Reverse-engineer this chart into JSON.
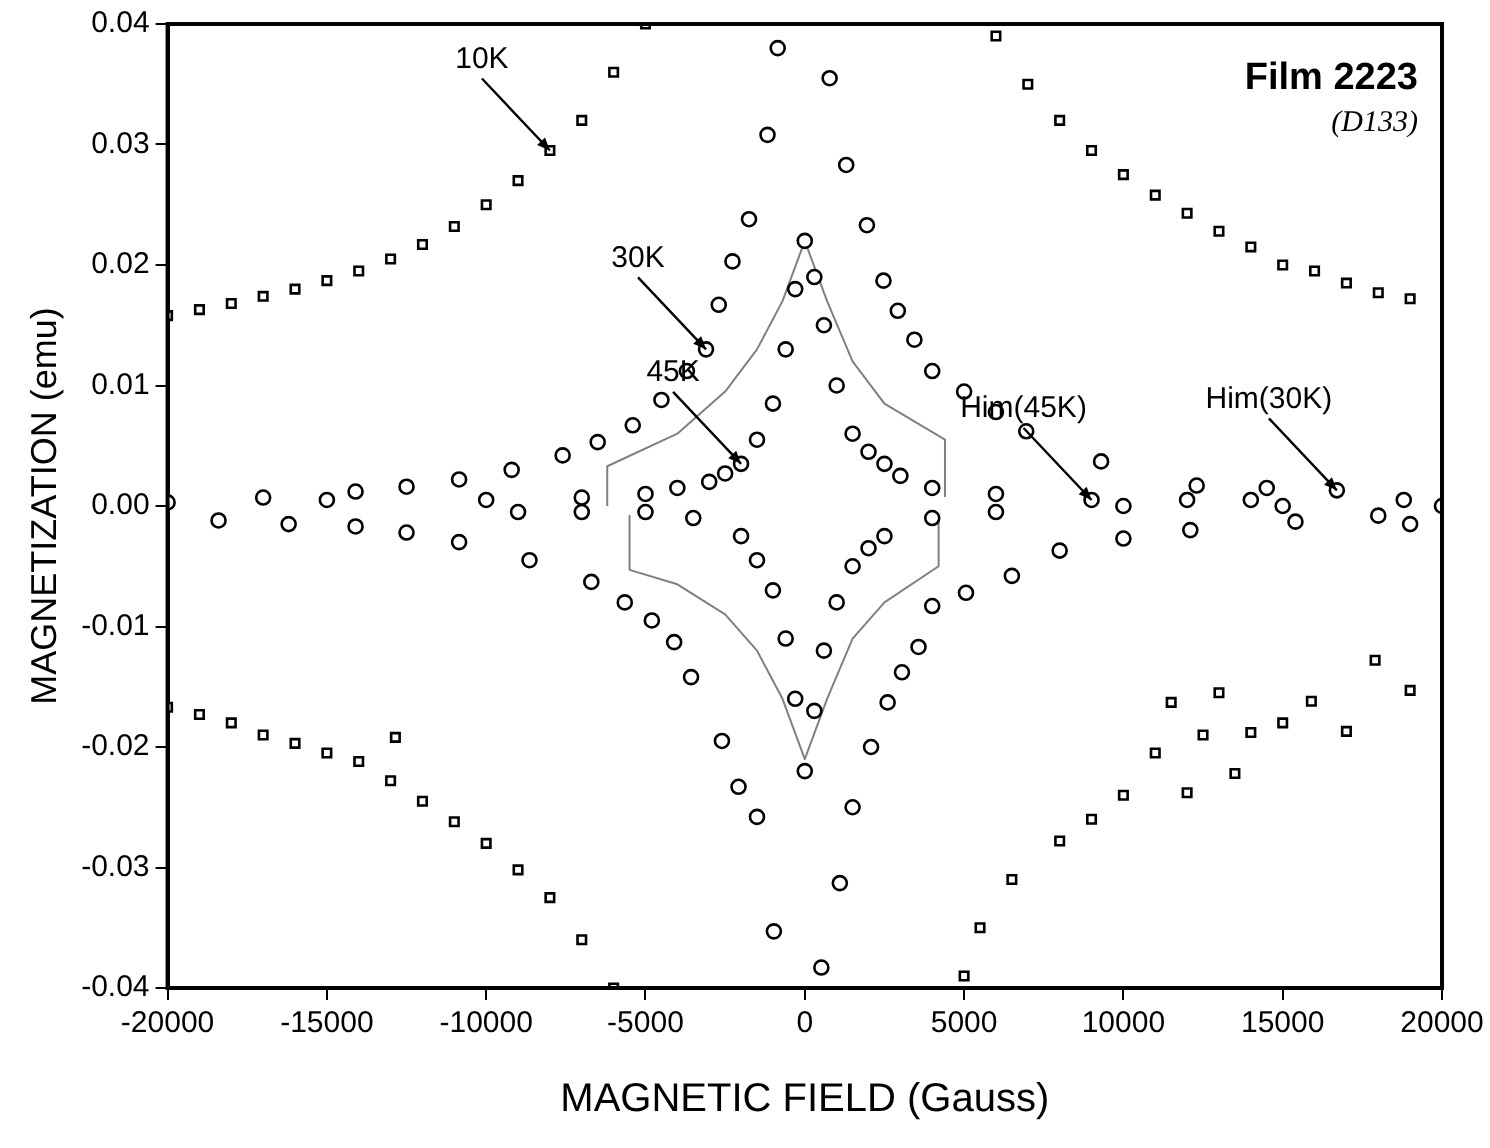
{
  "chart_data": {
    "type": "scatter",
    "xlabel": "MAGNETIC FIELD (Gauss)",
    "ylabel": "MAGNETIZATION (emu)",
    "xlim": [
      -20000,
      20000
    ],
    "xticks": [
      -20000,
      -15000,
      -10000,
      -5000,
      0,
      5000,
      10000,
      15000,
      20000
    ],
    "ylim": [
      -0.04,
      0.04
    ],
    "yticks": [
      {
        "value": -0.04,
        "label": "-0.04"
      },
      {
        "value": -0.03,
        "label": "-0.03"
      },
      {
        "value": -0.02,
        "label": "-0.02"
      },
      {
        "value": -0.01,
        "label": "-0.01"
      },
      {
        "value": 0,
        "label": "0.00"
      },
      {
        "value": 0.01,
        "label": "0.01"
      },
      {
        "value": 0.02,
        "label": "0.02"
      },
      {
        "value": 0.03,
        "label": "0.03"
      },
      {
        "value": 0.04,
        "label": "0.04"
      }
    ],
    "grid": false,
    "legend": false,
    "annotations": [
      "Film 2223",
      "(D133)",
      {
        "text": "10K",
        "x": -8000,
        "y": 0.0295
      },
      {
        "text": "30K",
        "x": -3100,
        "y": 0.013
      },
      {
        "text": "45K",
        "x": -2000,
        "y": 0.0035
      },
      {
        "text": "Him(45K)",
        "x": 9000,
        "y": 0.0005
      },
      {
        "text": "Him(30K)",
        "x": 16700,
        "y": 0.0013
      }
    ],
    "series": [
      {
        "marker": "square",
        "color": "#000000",
        "x": [
          -20000,
          -19000,
          -18000,
          -17000,
          -16000,
          -15000,
          -14000,
          -13000,
          -12000,
          -11000,
          -10000,
          -9000,
          -8000,
          -7000,
          -6000,
          -5000,
          6000,
          7000,
          8000,
          9000,
          10000,
          11000,
          12000,
          13000,
          14000,
          15000,
          16000,
          17000,
          18000,
          19000,
          -20000,
          -19000,
          -18000,
          -17000,
          -16000,
          -15000,
          -14000,
          -13000,
          -12000,
          -11000,
          -10000,
          -9000,
          -8000,
          -7000,
          -6000,
          -12850,
          5000,
          5500,
          6500,
          8000,
          9000,
          10000,
          11000,
          12500,
          14000,
          15000,
          11500,
          12000,
          13000,
          13500,
          15900,
          17000,
          17900,
          19000
        ],
        "values": [
          0.0158,
          0.0163,
          0.0168,
          0.0174,
          0.018,
          0.0187,
          0.0195,
          0.0205,
          0.0217,
          0.0232,
          0.025,
          0.027,
          0.0295,
          0.032,
          0.036,
          0.04,
          0.039,
          0.035,
          0.032,
          0.0295,
          0.0275,
          0.0258,
          0.0243,
          0.0228,
          0.0215,
          0.02,
          0.0195,
          0.0185,
          0.0177,
          0.0172,
          -0.0167,
          -0.0173,
          -0.018,
          -0.019,
          -0.0197,
          -0.0205,
          -0.0212,
          -0.0228,
          -0.0245,
          -0.0262,
          -0.028,
          -0.0302,
          -0.0325,
          -0.036,
          -0.04,
          -0.0192,
          -0.039,
          -0.035,
          -0.031,
          -0.0278,
          -0.026,
          -0.024,
          -0.0205,
          -0.019,
          -0.0188,
          -0.018,
          -0.0163,
          -0.0238,
          -0.0155,
          -0.0222,
          -0.0162,
          -0.0187,
          -0.0128,
          -0.0153
        ]
      },
      {
        "marker": "circle",
        "color": "#000000",
        "x": [
          -20000,
          -17000,
          -14100,
          -12500,
          -10850,
          -9200,
          -7600,
          -6500,
          -5400,
          -4500,
          -3700,
          -3100,
          -2700,
          -2270,
          -1750,
          -1170,
          -850,
          780,
          1300,
          1950,
          2470,
          2920,
          3440,
          4000,
          5000,
          6000,
          6950,
          9300,
          12300,
          14500,
          16700,
          18800,
          -18400,
          -16200,
          -14100,
          -12500,
          -10850,
          -8640,
          -6700,
          -5650,
          -4800,
          -4100,
          -3570,
          -2600,
          -2080,
          -1500,
          -970,
          520,
          1100,
          1500,
          2080,
          2600,
          3050,
          3570,
          4000,
          5060,
          6500,
          8000,
          10000,
          12100,
          15400,
          18000
        ],
        "values": [
          0.0003,
          0.0007,
          0.0012,
          0.0016,
          0.0022,
          0.003,
          0.0042,
          0.0053,
          0.0067,
          0.0088,
          0.0112,
          0.013,
          0.0167,
          0.0203,
          0.0238,
          0.0308,
          0.038,
          0.0355,
          0.0283,
          0.0233,
          0.0187,
          0.0162,
          0.0138,
          0.0112,
          0.0095,
          0.0078,
          0.0062,
          0.0037,
          0.0017,
          0.0015,
          0.0013,
          0.0005,
          -0.0012,
          -0.0015,
          -0.0017,
          -0.0022,
          -0.003,
          -0.0045,
          -0.0063,
          -0.008,
          -0.0095,
          -0.0113,
          -0.0142,
          -0.0195,
          -0.0233,
          -0.0258,
          -0.0353,
          -0.0383,
          -0.0313,
          -0.025,
          -0.02,
          -0.0163,
          -0.0138,
          -0.0117,
          -0.0083,
          -0.0072,
          -0.0058,
          -0.0037,
          -0.0027,
          -0.002,
          -0.0013,
          -0.0008
        ]
      },
      {
        "marker": "circle",
        "color": "#000000",
        "x": [
          -15000,
          -10000,
          -7000,
          -5000,
          -4000,
          -3000,
          -2500,
          -2000,
          -1500,
          -1000,
          -600,
          -300,
          0,
          300,
          600,
          1000,
          1500,
          2000,
          2500,
          3000,
          4000,
          6000,
          9000,
          12000,
          14000,
          -9000,
          -7000,
          -5000,
          -3500,
          -2000,
          -1500,
          -1000,
          -600,
          -300,
          0,
          300,
          600,
          1000,
          1500,
          2000,
          2500,
          4000,
          6000,
          10000,
          15000,
          19000,
          20000
        ],
        "values": [
          0.0005,
          0.0005,
          0.0007,
          0.001,
          0.0015,
          0.002,
          0.0027,
          0.0035,
          0.0055,
          0.0085,
          0.013,
          0.018,
          0.022,
          0.019,
          0.015,
          0.01,
          0.006,
          0.0045,
          0.0035,
          0.0025,
          0.0015,
          0.001,
          0.0005,
          0.0005,
          0.0005,
          -0.0005,
          -0.0005,
          -0.0005,
          -0.001,
          -0.0025,
          -0.0045,
          -0.007,
          -0.011,
          -0.016,
          -0.022,
          -0.017,
          -0.012,
          -0.008,
          -0.005,
          -0.0035,
          -0.0025,
          -0.001,
          -0.0005,
          0,
          0,
          -0.0015,
          0
        ]
      },
      {
        "type": "line",
        "marker": "none",
        "color": "#808080",
        "x": [
          -6200,
          -6200,
          -4000,
          -2500,
          -1500,
          -700,
          0,
          700,
          1500,
          2500,
          4400,
          4400
        ],
        "values": [
          0,
          0.0033,
          0.006,
          0.0095,
          0.013,
          0.017,
          0.022,
          0.017,
          0.012,
          0.0085,
          0.0055,
          0.0008
        ]
      },
      {
        "type": "line",
        "marker": "none",
        "color": "#808080",
        "x": [
          -5500,
          -5500,
          -4000,
          -2500,
          -1500,
          -700,
          0,
          700,
          1500,
          2500,
          4200,
          4200
        ],
        "values": [
          -0.0008,
          -0.0053,
          -0.0065,
          -0.009,
          -0.012,
          -0.016,
          -0.021,
          -0.016,
          -0.011,
          -0.008,
          -0.005,
          -0.0008
        ]
      }
    ]
  }
}
